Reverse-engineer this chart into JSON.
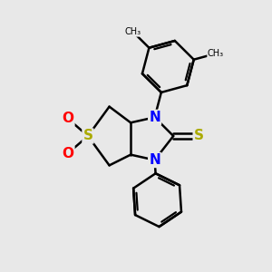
{
  "bg_color": "#e8e8e8",
  "bond_color": "#000000",
  "bond_width": 1.8,
  "N_color": "#0000ff",
  "S_color": "#aaaa00",
  "O_color": "#ff0000",
  "font_size_atoms": 11,
  "fig_size": [
    3.0,
    3.0
  ],
  "dpi": 100,
  "xlim": [
    0,
    10
  ],
  "ylim": [
    0,
    10
  ]
}
